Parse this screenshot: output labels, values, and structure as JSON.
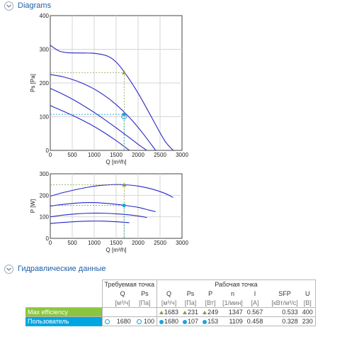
{
  "sections": {
    "diagrams": "Diagrams",
    "hydraulic": "Гидравлические данные"
  },
  "colors": {
    "curve": "#2727c8",
    "max_efficiency": "#8bc53f",
    "user": "#00a6e0",
    "operating_line": "#1aa3e0",
    "marker_max": "#8a9a3a"
  },
  "chart_data": [
    {
      "type": "line",
      "title": "",
      "xlabel": "Q [m³/h]",
      "ylabel": "Ps [Pa]",
      "xlim": [
        0,
        3000
      ],
      "ylim": [
        0,
        400
      ],
      "xticks": [
        0,
        500,
        1000,
        1500,
        2000,
        2500,
        3000
      ],
      "yticks": [
        0,
        100,
        200,
        300,
        400
      ],
      "grid": true,
      "series": [
        {
          "x": [
            0,
            200,
            400,
            700,
            1000,
            1300,
            1500,
            1700,
            2000,
            2300,
            2600,
            2800
          ],
          "y": [
            312,
            295,
            290,
            289,
            288,
            280,
            262,
            230,
            170,
            100,
            30,
            0
          ]
        },
        {
          "x": [
            0,
            300,
            600,
            900,
            1200,
            1500,
            1800,
            2100,
            2400
          ],
          "y": [
            225,
            218,
            206,
            189,
            166,
            136,
            98,
            52,
            0
          ]
        },
        {
          "x": [
            0,
            300,
            600,
            900,
            1200,
            1500,
            1800,
            2000,
            2200
          ],
          "y": [
            184,
            166,
            145,
            121,
            95,
            67,
            38,
            18,
            0
          ]
        },
        {
          "x": [
            0,
            300,
            600,
            900,
            1200,
            1500,
            1700,
            1800
          ],
          "y": [
            133,
            116,
            98,
            78,
            55,
            29,
            10,
            0
          ]
        }
      ],
      "points": {
        "max_efficiency": {
          "x": 1683,
          "y": 231
        },
        "user_operating": {
          "x": 1680,
          "y": 107
        },
        "user_required": {
          "x": 1680,
          "y": 100
        }
      }
    },
    {
      "type": "line",
      "title": "",
      "xlabel": "Q [m³/h]",
      "ylabel": "P [W]",
      "xlim": [
        0,
        3000
      ],
      "ylim": [
        0,
        300
      ],
      "xticks": [
        0,
        500,
        1000,
        1500,
        2000,
        2500,
        3000
      ],
      "yticks": [
        0,
        100,
        200,
        300
      ],
      "grid": true,
      "series": [
        {
          "x": [
            0,
            300,
            600,
            900,
            1200,
            1500,
            1700,
            2000,
            2300,
            2600,
            2800
          ],
          "y": [
            196,
            213,
            227,
            239,
            247,
            250,
            249,
            243,
            230,
            210,
            190
          ]
        },
        {
          "x": [
            0,
            300,
            600,
            900,
            1200,
            1500,
            1700,
            2000,
            2200,
            2400
          ],
          "y": [
            150,
            158,
            164,
            166,
            164,
            158,
            153,
            144,
            134,
            124
          ]
        },
        {
          "x": [
            0,
            300,
            600,
            900,
            1200,
            1500,
            1800,
            2100,
            2200
          ],
          "y": [
            100,
            108,
            114,
            117,
            117,
            114,
            109,
            101,
            96
          ]
        },
        {
          "x": [
            0,
            300,
            600,
            900,
            1200,
            1500,
            1800
          ],
          "y": [
            69,
            74,
            78,
            80,
            80,
            77,
            73
          ]
        }
      ],
      "points": {
        "max_efficiency": {
          "x": 1683,
          "y": 249
        },
        "user_operating": {
          "x": 1680,
          "y": 153
        }
      }
    }
  ],
  "table": {
    "group_required": "Требуемая точка",
    "group_operating": "Рабочая точка",
    "req_cols": [
      {
        "label": "Q",
        "unit": "[м³/ч]"
      },
      {
        "label": "Ps",
        "unit": "[Па]"
      }
    ],
    "op_cols": [
      {
        "label": "Q",
        "unit": "[м³/ч]"
      },
      {
        "label": "Ps",
        "unit": "[Па]"
      },
      {
        "label": "P",
        "unit": "[Вт]"
      },
      {
        "label": "n",
        "unit": "[1/мин]"
      },
      {
        "label": "I",
        "unit": "[A]"
      },
      {
        "label": "SFP",
        "unit": "[кВт/м³/с]"
      },
      {
        "label": "U",
        "unit": "[В]"
      }
    ],
    "rows": [
      {
        "label": "Max efficiency",
        "req_q": "",
        "req_ps": "",
        "q": "1683",
        "ps": "231",
        "p": "249",
        "n": "1347",
        "i": "0.567",
        "sfp": "0.533",
        "u": "400"
      },
      {
        "label": "Пользователь",
        "req_q": "1680",
        "req_ps": "100",
        "q": "1680",
        "ps": "107",
        "p": "153",
        "n": "1109",
        "i": "0.458",
        "sfp": "0.328",
        "u": "230"
      }
    ]
  }
}
